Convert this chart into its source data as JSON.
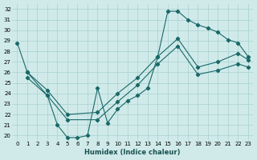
{
  "xlabel": "Humidex (Indice chaleur)",
  "bg_color": "#d0eaea",
  "grid_color": "#a8d0d0",
  "line_color": "#1a6868",
  "xlim": [
    -0.5,
    23.5
  ],
  "ylim": [
    19.5,
    32.5
  ],
  "xticks": [
    0,
    1,
    2,
    3,
    4,
    5,
    6,
    7,
    8,
    9,
    10,
    11,
    12,
    13,
    14,
    15,
    16,
    17,
    18,
    19,
    20,
    21,
    22,
    23
  ],
  "yticks": [
    20,
    21,
    22,
    23,
    24,
    25,
    26,
    27,
    28,
    29,
    30,
    31,
    32
  ],
  "curve1_x": [
    0,
    1,
    3,
    4,
    5,
    6,
    7,
    8,
    9,
    10,
    11,
    12,
    13,
    14,
    15,
    16,
    17,
    18,
    19,
    20,
    21,
    22,
    23
  ],
  "curve1_y": [
    28.8,
    26.0,
    23.8,
    21.0,
    19.8,
    19.8,
    20.0,
    24.5,
    21.2,
    22.5,
    23.3,
    23.8,
    24.5,
    27.5,
    31.8,
    31.8,
    31.0,
    30.5,
    30.2,
    29.8,
    29.1,
    28.8,
    27.5
  ],
  "curve2_x": [
    1,
    3,
    5,
    8,
    10,
    12,
    14,
    16,
    18,
    20,
    22,
    23
  ],
  "curve2_y": [
    26.0,
    24.3,
    22.0,
    22.2,
    24.0,
    25.5,
    27.5,
    29.2,
    26.5,
    27.0,
    27.8,
    27.2
  ],
  "curve3_x": [
    1,
    3,
    5,
    8,
    10,
    12,
    14,
    16,
    18,
    20,
    22,
    23
  ],
  "curve3_y": [
    25.5,
    23.8,
    21.5,
    21.5,
    23.2,
    24.8,
    26.8,
    28.5,
    25.8,
    26.2,
    26.8,
    26.5
  ]
}
